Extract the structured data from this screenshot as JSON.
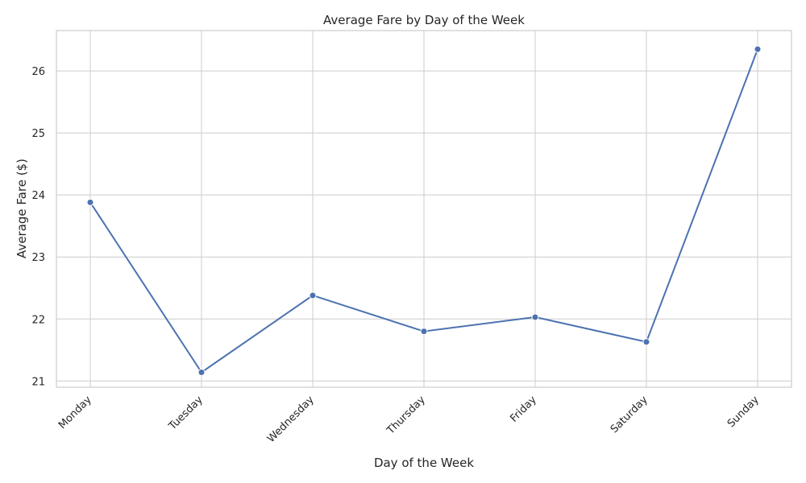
{
  "chart_data": {
    "type": "line",
    "title": "Average Fare by Day of the Week",
    "xlabel": "Day of the Week",
    "ylabel": "Average Fare ($)",
    "categories": [
      "Monday",
      "Tuesday",
      "Wednesday",
      "Thursday",
      "Friday",
      "Saturday",
      "Sunday"
    ],
    "values": [
      23.88,
      21.14,
      22.38,
      21.8,
      22.03,
      21.63,
      26.35
    ],
    "ylim": [
      20.9,
      26.65
    ],
    "yticks": [
      21,
      22,
      23,
      24,
      25,
      26
    ],
    "grid": true,
    "marker": "circle",
    "color": "#4c72b0"
  }
}
